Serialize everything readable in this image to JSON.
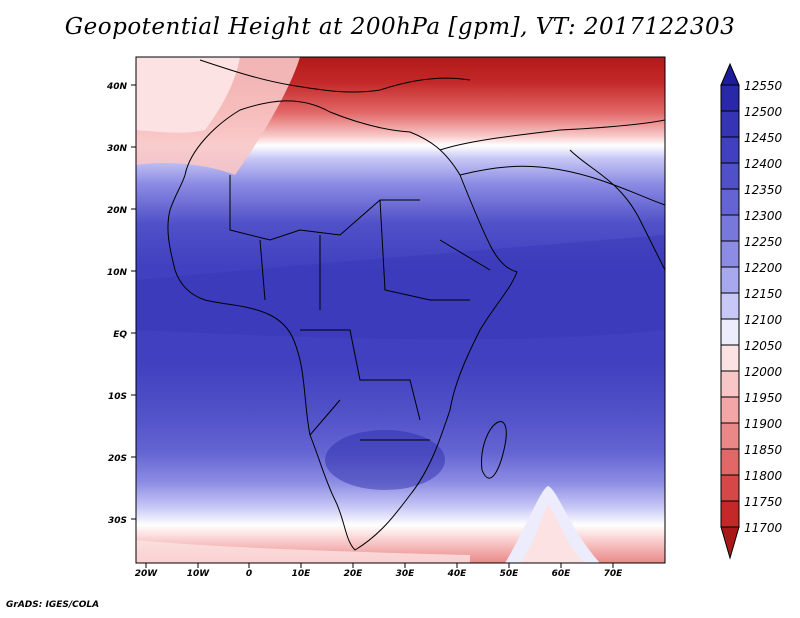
{
  "title": "Geopotential Height at 200hPa [gpm], VT: 2017122303",
  "credit": "GrADS: IGES/COLA",
  "map": {
    "lat_ticks": [
      "40N",
      "30N",
      "20N",
      "10N",
      "EQ",
      "10S",
      "20S",
      "30S"
    ],
    "lon_ticks": [
      "20W",
      "10W",
      "0",
      "10E",
      "20E",
      "30E",
      "40E",
      "50E",
      "60E",
      "70E"
    ]
  },
  "colorbar": {
    "levels": [
      "12550",
      "12500",
      "12450",
      "12400",
      "12350",
      "12300",
      "12250",
      "12200",
      "12150",
      "12100",
      "12050",
      "12000",
      "11950",
      "11900",
      "11850",
      "11800",
      "11750",
      "11700"
    ],
    "colors": [
      "#1c1c9c",
      "#2828a8",
      "#3434b4",
      "#4040c0",
      "#5050c8",
      "#6464d2",
      "#7878dc",
      "#8c8ce4",
      "#a8a8ee",
      "#c8c8f6",
      "#ececfc",
      "#fce2e2",
      "#f8c6c6",
      "#f2a6a6",
      "#ea8888",
      "#e26868",
      "#d64848",
      "#c42828",
      "#a81818"
    ]
  }
}
